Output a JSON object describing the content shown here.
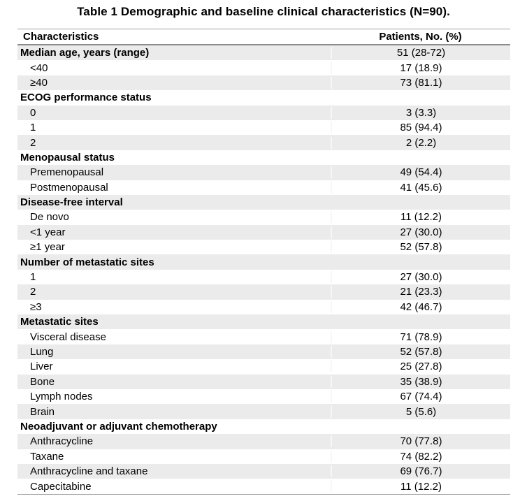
{
  "title": "Table 1 Demographic and baseline clinical characteristics (N=90).",
  "table": {
    "columns": [
      "Characteristics",
      "Patients, No. (%)"
    ],
    "rows": [
      {
        "label": "Median age, years (range)",
        "value": "51 (28-72)",
        "level": "category"
      },
      {
        "label": "<40",
        "value": "17 (18.9)",
        "level": "item"
      },
      {
        "label": "≥40",
        "value": "73 (81.1)",
        "level": "item"
      },
      {
        "label": "ECOG performance status",
        "value": "",
        "level": "category"
      },
      {
        "label": "0",
        "value": "3 (3.3)",
        "level": "item"
      },
      {
        "label": "1",
        "value": "85 (94.4)",
        "level": "item"
      },
      {
        "label": "2",
        "value": "2 (2.2)",
        "level": "item"
      },
      {
        "label": "Menopausal status",
        "value": "",
        "level": "category"
      },
      {
        "label": "Premenopausal",
        "value": "49 (54.4)",
        "level": "item"
      },
      {
        "label": "Postmenopausal",
        "value": "41 (45.6)",
        "level": "item"
      },
      {
        "label": "Disease-free interval",
        "value": "",
        "level": "category"
      },
      {
        "label": "De novo",
        "value": "11 (12.2)",
        "level": "item"
      },
      {
        "label": "<1 year",
        "value": "27 (30.0)",
        "level": "item"
      },
      {
        "label": "≥1 year",
        "value": "52 (57.8)",
        "level": "item"
      },
      {
        "label": "Number of metastatic sites",
        "value": "",
        "level": "category"
      },
      {
        "label": "1",
        "value": "27 (30.0)",
        "level": "item"
      },
      {
        "label": "2",
        "value": "21 (23.3)",
        "level": "item"
      },
      {
        "label": "≥3",
        "value": "42 (46.7)",
        "level": "item"
      },
      {
        "label": "Metastatic sites",
        "value": "",
        "level": "category"
      },
      {
        "label": "Visceral disease",
        "value": "71 (78.9)",
        "level": "item"
      },
      {
        "label": "Lung",
        "value": "52 (57.8)",
        "level": "item"
      },
      {
        "label": "Liver",
        "value": "25 (27.8)",
        "level": "item"
      },
      {
        "label": "Bone",
        "value": "35 (38.9)",
        "level": "item"
      },
      {
        "label": "Lymph nodes",
        "value": "67 (74.4)",
        "level": "item"
      },
      {
        "label": "Brain",
        "value": "5 (5.6)",
        "level": "item"
      },
      {
        "label": "Neoadjuvant or adjuvant chemotherapy",
        "value": "",
        "level": "category"
      },
      {
        "label": "Anthracycline",
        "value": "70 (77.8)",
        "level": "item"
      },
      {
        "label": "Taxane",
        "value": "74 (82.2)",
        "level": "item"
      },
      {
        "label": "Anthracycline and taxane",
        "value": "69 (76.7)",
        "level": "item"
      },
      {
        "label": "Capecitabine",
        "value": "11 (12.2)",
        "level": "item"
      }
    ]
  },
  "colors": {
    "row_shade": "#ebebeb",
    "rule_light": "#a0a0a0",
    "rule_dark": "#8c8c8c",
    "text": "#000000"
  }
}
